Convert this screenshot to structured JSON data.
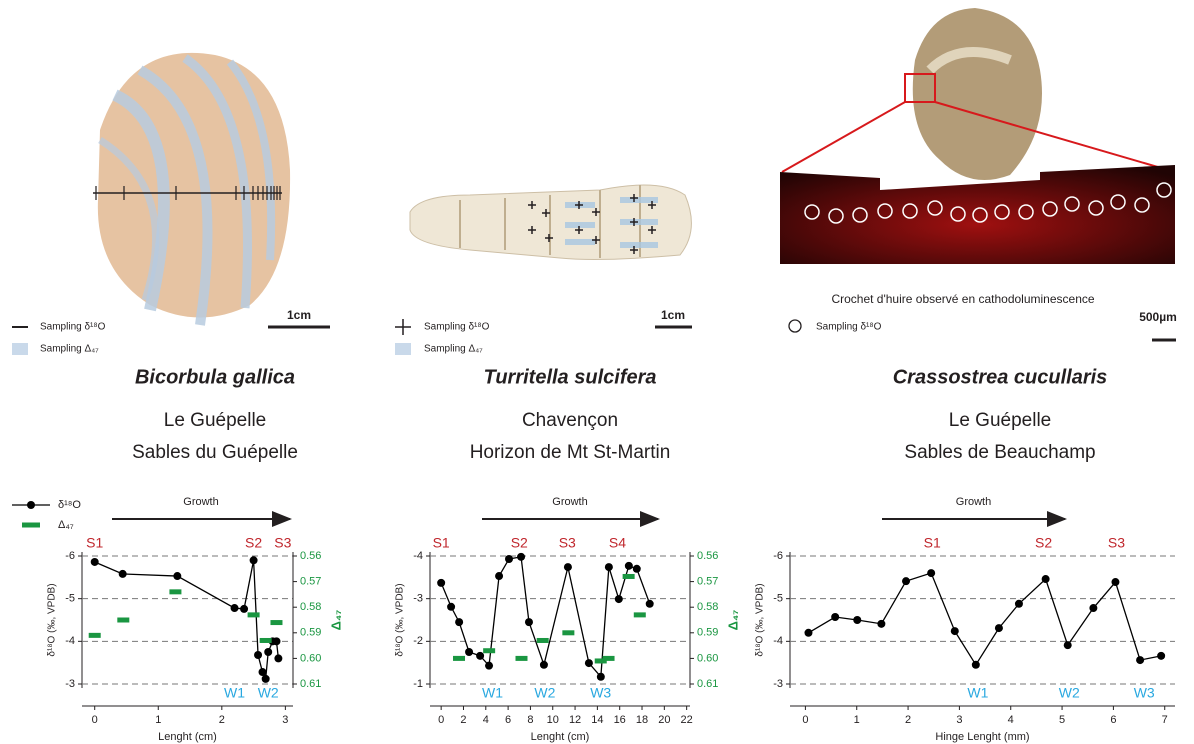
{
  "panels": [
    {
      "legend": [
        "Sampling δ¹⁸O",
        "Sampling Δ₄₇"
      ],
      "scale": "1cm",
      "species": "Bicorbula gallica",
      "locality": "Le Guépelle",
      "formation": "Sables du Guépelle"
    },
    {
      "legend": [
        "Sampling δ¹⁸O",
        "Sampling Δ₄₇"
      ],
      "scale": "1cm",
      "species": "Turritella sulcifera",
      "locality": "Chavençon",
      "formation": "Horizon de Mt St-Martin"
    },
    {
      "caption": "Crochet d'huire observé en cathodoluminescence",
      "legend": [
        "Sampling δ¹⁸O"
      ],
      "scale": "500µm",
      "species": "Crassostrea cucullaris",
      "locality": "Le Guépelle",
      "formation": "Sables de Beauchamp"
    }
  ],
  "chart_data": [
    {
      "type": "line",
      "xlabel": "Lenght (cm)",
      "ylabel": "δ¹⁸O (‰, VPDB)",
      "y2label": "Δ₄₇",
      "arrow_label": "Growth",
      "legend": true,
      "xlim": [
        -0.2,
        3.12
      ],
      "xticks": [
        0,
        1,
        2,
        3
      ],
      "ylim": [
        -3,
        -6
      ],
      "yticks": [
        -6,
        -5,
        -4,
        -3
      ],
      "y2lim": [
        0.61,
        0.56
      ],
      "y2ticks": [
        0.56,
        0.57,
        0.58,
        0.59,
        {
          "value": 0.6,
          "label": "0.60"
        },
        0.61
      ],
      "series": [
        {
          "name": "δ¹⁸O",
          "color": "#000000",
          "marker": "circle",
          "x": [
            0,
            0.44,
            1.3,
            2.2,
            2.35,
            2.5,
            2.57,
            2.64,
            2.69,
            2.73,
            2.8,
            2.86,
            2.89
          ],
          "values": [
            -5.86,
            -5.58,
            -5.53,
            -4.78,
            -4.76,
            -5.9,
            -3.68,
            -3.28,
            -3.12,
            -3.75,
            -4,
            -4,
            -3.6
          ]
        },
        {
          "name": "Δ₄₇",
          "color": "#1a9641",
          "marker": "dash",
          "axis": "y2",
          "x": [
            0,
            0.45,
            1.27,
            2.5,
            2.69,
            2.86
          ],
          "values": [
            0.591,
            0.585,
            0.574,
            0.583,
            0.593,
            0.586
          ]
        }
      ],
      "annotations": [
        {
          "text": "S1",
          "x": 0,
          "pos": "top"
        },
        {
          "text": "S2",
          "x": 2.5,
          "pos": "top"
        },
        {
          "text": "S3",
          "x": 2.96,
          "pos": "top"
        },
        {
          "text": "W1",
          "x": 2.2,
          "pos": "bottom"
        },
        {
          "text": "W2",
          "x": 2.73,
          "pos": "bottom"
        }
      ]
    },
    {
      "type": "line",
      "xlabel": "Lenght (cm)",
      "ylabel": "δ¹⁸O (‰, VPDB)",
      "y2label": "Δ₄₇",
      "arrow_label": "Growth",
      "legend": false,
      "xlim": [
        -1,
        22.3
      ],
      "xticks": [
        0,
        2,
        4,
        6,
        8,
        10,
        12,
        14,
        16,
        18,
        20,
        22
      ],
      "ylim": [
        -1,
        -4
      ],
      "yticks": [
        -4,
        -3,
        -2,
        -1
      ],
      "y2lim": [
        0.61,
        0.56
      ],
      "y2ticks": [
        0.56,
        0.57,
        0.58,
        0.59,
        {
          "value": 0.6,
          "label": "0.60"
        },
        0.61
      ],
      "series": [
        {
          "name": "δ¹⁸O",
          "color": "#000000",
          "marker": "circle",
          "x": [
            0,
            0.89,
            1.61,
            2.5,
            3.49,
            4.29,
            5.19,
            6.08,
            7.16,
            7.87,
            9.21,
            11.36,
            13.24,
            14.31,
            15.03,
            15.92,
            16.82,
            17.53,
            18.69
          ],
          "values": [
            -3.37,
            -2.81,
            -2.45,
            -1.75,
            -1.66,
            -1.43,
            -3.53,
            -3.93,
            -3.98,
            -2.45,
            -1.45,
            -3.74,
            -1.49,
            -1.17,
            -3.74,
            -2.99,
            -3.77,
            -3.7,
            -2.88
          ]
        },
        {
          "name": "Δ₄₇",
          "color": "#1a9641",
          "marker": "dash",
          "axis": "y2",
          "x": [
            1.6,
            4.3,
            7.2,
            9.1,
            11.4,
            14.3,
            15,
            16.8,
            17.8
          ],
          "values": [
            0.6,
            0.597,
            0.6,
            0.593,
            0.59,
            0.601,
            0.6,
            0.568,
            0.583
          ]
        }
      ],
      "annotations": [
        {
          "text": "S1",
          "x": 0,
          "pos": "top"
        },
        {
          "text": "S2",
          "x": 7,
          "pos": "top"
        },
        {
          "text": "S3",
          "x": 11.3,
          "pos": "top"
        },
        {
          "text": "S4",
          "x": 15.8,
          "pos": "top"
        },
        {
          "text": "W1",
          "x": 4.6,
          "pos": "bottom"
        },
        {
          "text": "W2",
          "x": 9.3,
          "pos": "bottom"
        },
        {
          "text": "W3",
          "x": 14.3,
          "pos": "bottom"
        }
      ]
    },
    {
      "type": "line",
      "xlabel": "Hinge Lenght (mm)",
      "ylabel": "δ¹⁸O (‰, VPDB)",
      "arrow_label": "Growth",
      "legend": false,
      "xlim": [
        -0.3,
        7.2
      ],
      "xticks": [
        0,
        1,
        2,
        3,
        4,
        5,
        6,
        7
      ],
      "ylim": [
        -3,
        -6
      ],
      "yticks": [
        -6,
        -5,
        -4,
        -3
      ],
      "series": [
        {
          "name": "δ¹⁸O",
          "color": "#000000",
          "marker": "circle",
          "x": [
            0.06,
            0.58,
            1.01,
            1.48,
            1.96,
            2.45,
            2.91,
            3.32,
            3.77,
            4.16,
            4.68,
            5.11,
            5.61,
            6.04,
            6.52,
            6.93
          ],
          "values": [
            -4.2,
            -4.57,
            -4.5,
            -4.41,
            -5.41,
            -5.6,
            -4.24,
            -3.45,
            -4.31,
            -4.88,
            -5.46,
            -3.91,
            -4.78,
            -5.39,
            -3.56,
            -3.66
          ]
        }
      ],
      "annotations": [
        {
          "text": "S1",
          "x": 2.47,
          "pos": "top"
        },
        {
          "text": "S2",
          "x": 4.64,
          "pos": "top"
        },
        {
          "text": "S3",
          "x": 6.06,
          "pos": "top"
        },
        {
          "text": "W1",
          "x": 3.36,
          "pos": "bottom"
        },
        {
          "text": "W2",
          "x": 5.14,
          "pos": "bottom"
        },
        {
          "text": "W3",
          "x": 6.6,
          "pos": "bottom"
        }
      ]
    }
  ]
}
